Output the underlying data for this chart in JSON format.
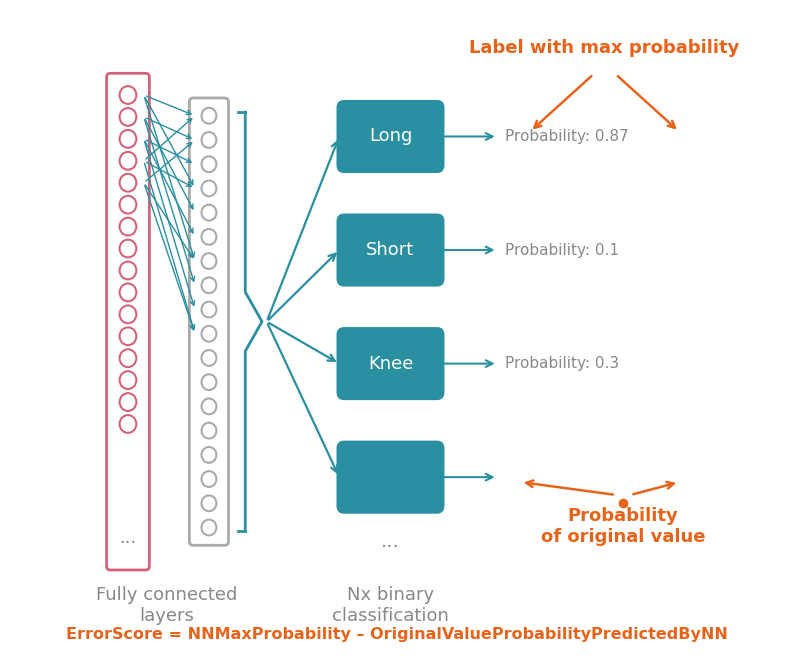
{
  "bg_color": "#ffffff",
  "teal_color": "#2a8fa0",
  "orange_color": "#e8631a",
  "pink_color": "#d4637a",
  "gray_color": "#aaaaaa",
  "dark_gray": "#888888",
  "labels": [
    "Long",
    "Short",
    "Knee",
    ""
  ],
  "probabilities": [
    "Probability: 0.87",
    "Probability: 0.1",
    "Probability: 0.3",
    ""
  ],
  "bottom_text": "ErrorScore = NNMaxProbability – OriginalValueProbabilityPredictedByNN",
  "fully_connected_label": "Fully connected\nlayers",
  "nx_binary_label": "Nx binary\nclassification",
  "label_max_prob": "Label with max probability",
  "label_orig_val": "Probability\nof original value"
}
